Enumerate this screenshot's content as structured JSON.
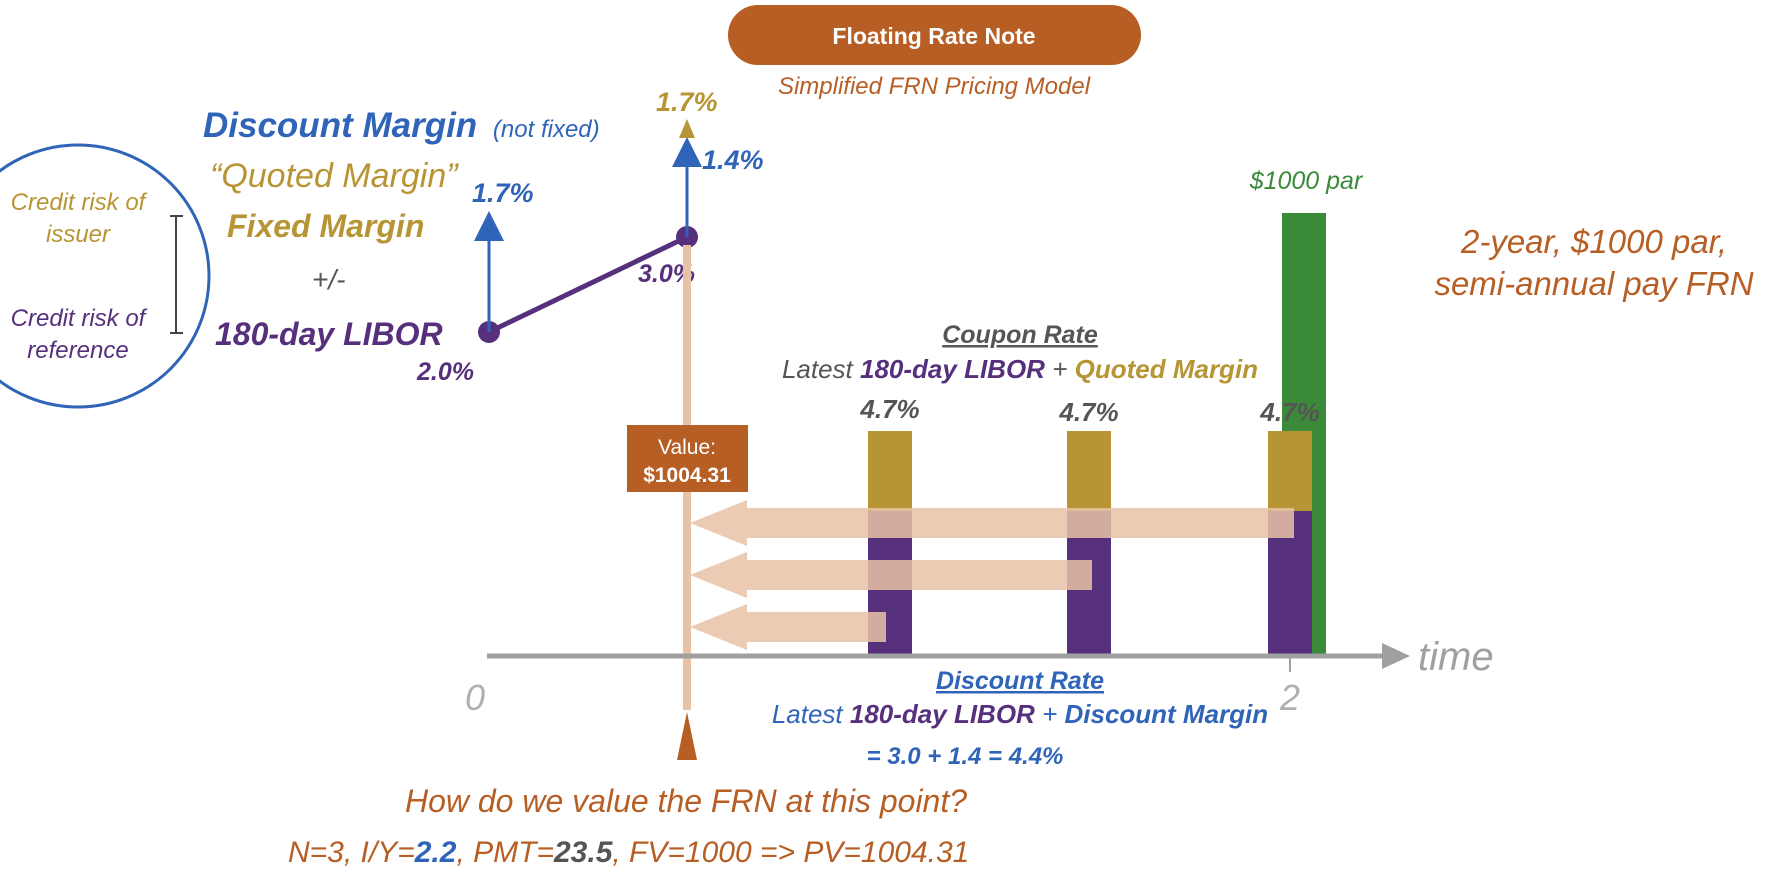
{
  "header": {
    "title": "Floating Rate Note",
    "subtitle": "Simplified FRN Pricing Model"
  },
  "margins": {
    "discount_margin": "Discount Margin",
    "discount_margin_note": "(not fixed)",
    "quoted_margin": "“Quoted Margin”",
    "fixed_margin": "Fixed Margin",
    "plus_minus": "+/-",
    "libor": "180-day LIBOR"
  },
  "risk": {
    "issuer_line1": "Credit risk of",
    "issuer_line2": "issuer",
    "reference_line1": "Credit risk of",
    "reference_line2": "reference"
  },
  "rates": {
    "libor_start": "2.0%",
    "libor_now": "3.0%",
    "arrow_17_left": "1.7%",
    "arrow_14": "1.4%",
    "arrow_17_top": "1.7%"
  },
  "par_label": "$1000 par",
  "description_line1": "2-year, $1000 par,",
  "description_line2": "semi-annual pay FRN",
  "coupon": {
    "title": "Coupon Rate",
    "prefix": "Latest ",
    "libor": "180-day LIBOR",
    "plus": " + ",
    "margin": "Quoted Margin"
  },
  "bars": {
    "coupon_labels": [
      "4.7%",
      "4.7%",
      "4.7%"
    ],
    "coupon_rate_pct": 4.7,
    "libor_part_pct": 3.0,
    "margin_part_pct": 1.7
  },
  "value_box": {
    "label": "Value:",
    "amount": "$1004.31"
  },
  "axis": {
    "label": "time",
    "tick_start": "0",
    "tick_end": "2"
  },
  "discount": {
    "title": "Discount Rate",
    "prefix": "Latest ",
    "libor": "180-day LIBOR",
    "plus": " + ",
    "margin": "Discount Margin",
    "calc": "= 3.0 + 1.4 = 4.4%"
  },
  "question": "How do we value the FRN at this point?",
  "calculator": {
    "n": "N=3, I/Y=",
    "iy": "2.2",
    "pmt_prefix": ", PMT=",
    "pmt": "23.5",
    "rest": ", FV=1000  =>  PV=1004.31"
  },
  "colors": {
    "blue": "#2f64b8",
    "gold": "#b79534",
    "purple": "#56307c",
    "orange": "#b75e25",
    "green": "#3a8a3a",
    "gray": "#a0a0a0",
    "peach": "#e7c2a6"
  }
}
